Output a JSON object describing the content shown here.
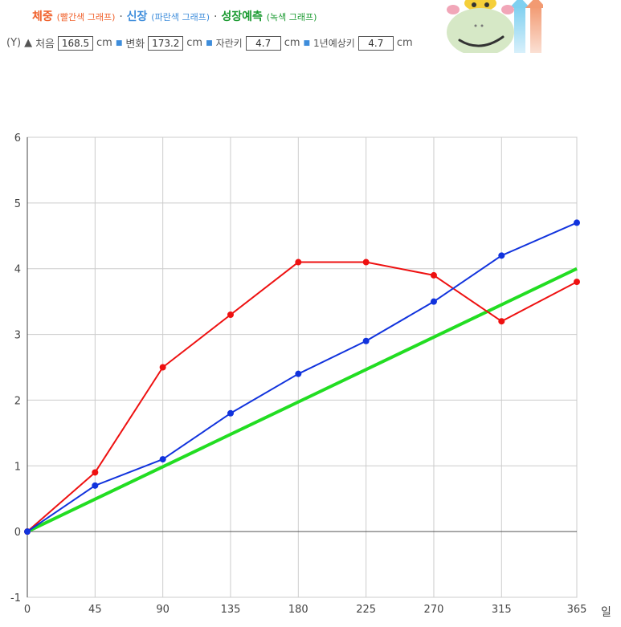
{
  "legend": {
    "weight_label": "체중",
    "weight_sub": "(빨간색 그래프)",
    "sep": "·",
    "height_label": "신장",
    "height_sub": "(파란색 그래프)",
    "predict_label": "성장예측",
    "predict_sub": "(녹색 그래프)"
  },
  "inputs": {
    "axis_label": "(Y)",
    "start_label": "처음",
    "start_value": "168.5",
    "change_label": "변화",
    "change_value": "173.2",
    "grown_label": "자란키",
    "grown_value": "4.7",
    "year_label": "1년예상키",
    "year_value": "4.7",
    "unit": "cm"
  },
  "x_unit_label": "일",
  "colors": {
    "weight": "#ee1111",
    "height": "#1133dd",
    "predict": "#22dd22"
  },
  "chart_data": {
    "type": "line",
    "x": [
      0,
      45,
      90,
      135,
      180,
      225,
      270,
      315,
      365
    ],
    "xlim": [
      0,
      365
    ],
    "ylim": [
      -1,
      6
    ],
    "xticks": [
      0,
      45,
      90,
      135,
      180,
      225,
      270,
      315,
      365
    ],
    "yticks": [
      -1,
      0,
      1,
      2,
      3,
      4,
      5,
      6
    ],
    "grid": true,
    "series": [
      {
        "name": "체중",
        "color": "#ee1111",
        "values": [
          0,
          0.9,
          2.5,
          3.3,
          4.1,
          4.1,
          3.9,
          3.2,
          3.8
        ],
        "markers": true
      },
      {
        "name": "신장",
        "color": "#1133dd",
        "values": [
          0,
          0.7,
          1.1,
          1.8,
          2.4,
          2.9,
          3.5,
          4.2,
          4.7
        ],
        "markers": true
      },
      {
        "name": "성장예측",
        "color": "#22dd22",
        "x": [
          0,
          365
        ],
        "values": [
          0,
          4.0
        ],
        "markers": false
      }
    ]
  }
}
